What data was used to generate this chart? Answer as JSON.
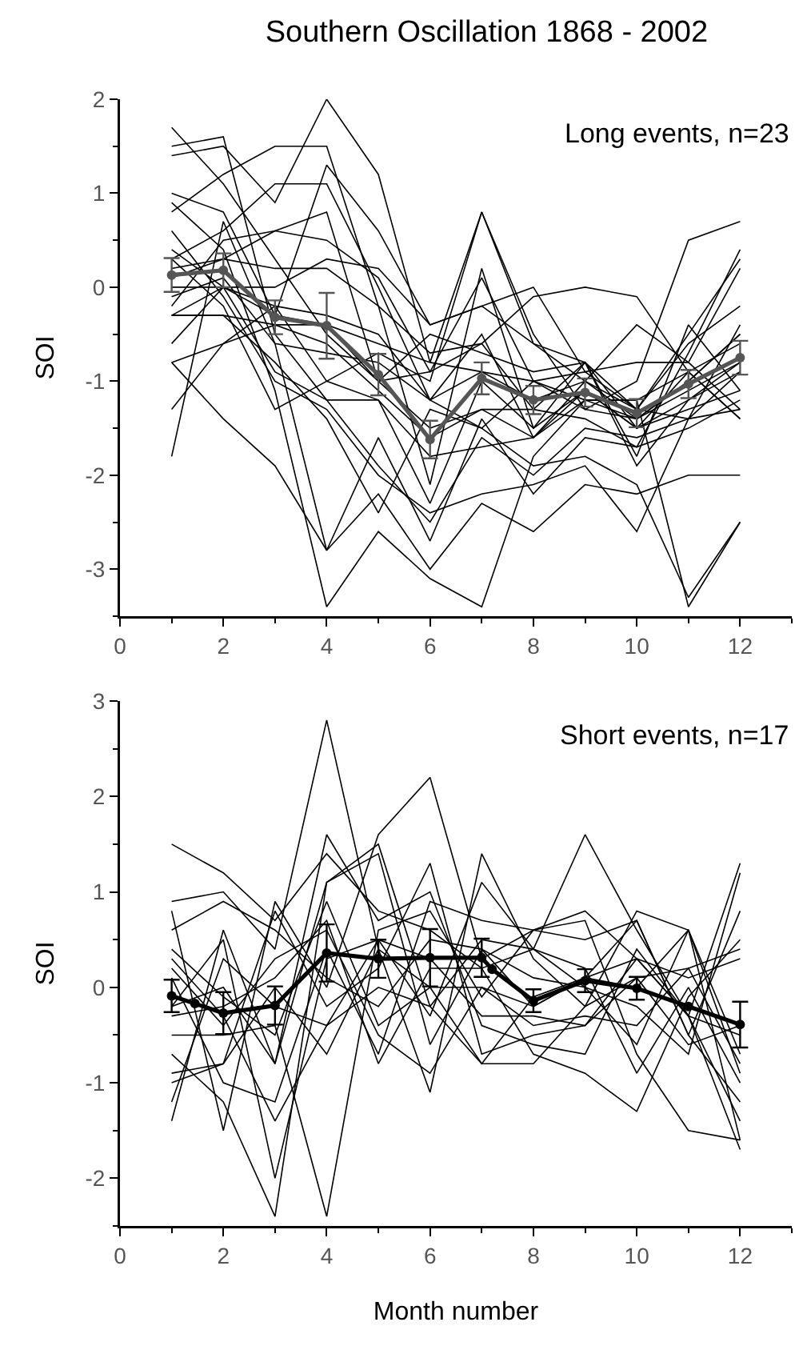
{
  "chart_data": [
    {
      "type": "line",
      "title": "Southern Oscillation 1868 - 2002",
      "ylabel": "SOI",
      "annotations": [
        "Long events, n=23"
      ],
      "x": [
        1,
        2,
        3,
        4,
        5,
        6,
        7,
        8,
        9,
        10,
        11,
        12
      ],
      "xlim": [
        0,
        13
      ],
      "xticks": [
        0,
        2,
        4,
        6,
        8,
        10,
        12
      ],
      "ylim": [
        -3.5,
        2
      ],
      "yticks": [
        -3,
        -2,
        -1,
        0,
        1,
        2
      ],
      "series": [
        {
          "color": "#000000",
          "values": [
            1.7,
            1.1,
            0.3,
            -0.5,
            -1.0,
            -1.5,
            -1.3,
            -1.6,
            -1.2,
            -1.4,
            -1.0,
            -0.5
          ]
        },
        {
          "color": "#000000",
          "values": [
            1.4,
            1.5,
            0.9,
            2.0,
            1.2,
            -0.8,
            0.8,
            -0.5,
            -1.3,
            -1.0,
            0.5,
            0.7
          ]
        },
        {
          "color": "#000000",
          "values": [
            1.5,
            1.6,
            -0.5,
            -1.2,
            -1.2,
            -2.3,
            -1.0,
            -1.5,
            -0.8,
            -1.9,
            -1.2,
            -0.8
          ]
        },
        {
          "color": "#000000",
          "values": [
            0.8,
            1.2,
            1.5,
            1.5,
            -0.2,
            -2.1,
            0.2,
            -1.5,
            -1.1,
            -1.5,
            -0.9,
            -0.6
          ]
        },
        {
          "color": "#000000",
          "values": [
            0.3,
            0.6,
            1.1,
            1.1,
            0.0,
            -1.2,
            -0.5,
            -1.6,
            -1.0,
            -1.3,
            -1.4,
            -0.9
          ]
        },
        {
          "color": "#000000",
          "values": [
            -0.2,
            0.5,
            0.6,
            0.5,
            0.1,
            -0.9,
            -0.6,
            -1.3,
            -0.8,
            -1.3,
            -0.6,
            -0.2
          ]
        },
        {
          "color": "#000000",
          "values": [
            0.2,
            0.3,
            0.2,
            0.2,
            -0.2,
            -0.7,
            -0.6,
            -0.1,
            0.0,
            -0.1,
            -0.9,
            -1.4
          ]
        },
        {
          "color": "#000000",
          "values": [
            0.0,
            0.0,
            -0.2,
            -0.3,
            -0.5,
            -1.2,
            -1.5,
            -1.9,
            -1.8,
            -2.1,
            -3.3,
            -2.5
          ]
        },
        {
          "color": "#000000",
          "values": [
            -0.3,
            -0.3,
            -0.4,
            -0.4,
            -0.6,
            -0.8,
            -0.9,
            -1.2,
            -1.0,
            -1.4,
            -1.0,
            -0.5
          ]
        },
        {
          "color": "#000000",
          "values": [
            -0.8,
            -0.6,
            -0.4,
            -0.6,
            -1.1,
            -1.6,
            -1.3,
            -1.3,
            -1.4,
            -1.7,
            -0.7,
            0.4
          ]
        },
        {
          "color": "#000000",
          "values": [
            -1.3,
            -0.6,
            -0.2,
            -1.0,
            -1.2,
            -1.8,
            -1.7,
            -1.6,
            -1.1,
            -1.5,
            -1.3,
            -1.1
          ]
        },
        {
          "color": "#000000",
          "values": [
            -1.8,
            0.7,
            -0.6,
            -2.8,
            -2.2,
            -3.0,
            -2.3,
            -2.6,
            -2.1,
            -2.2,
            -2.0,
            -2.0
          ]
        },
        {
          "color": "#000000",
          "values": [
            -0.8,
            -1.4,
            -1.9,
            -2.8,
            -1.6,
            -2.7,
            -1.4,
            -2.2,
            -1.6,
            -1.7,
            -1.5,
            -1.2
          ]
        },
        {
          "color": "#000000",
          "values": [
            0.4,
            0.0,
            -0.9,
            -1.2,
            -1.9,
            -2.5,
            -1.6,
            -2.0,
            -1.5,
            -1.6,
            -1.4,
            -1.3
          ]
        },
        {
          "color": "#000000",
          "values": [
            0.6,
            -0.1,
            -1.0,
            -1.3,
            -2.0,
            -2.4,
            -2.2,
            -2.1,
            -1.9,
            -2.6,
            -1.4,
            -0.4
          ]
        },
        {
          "color": "#000000",
          "values": [
            0.9,
            0.4,
            -1.1,
            -3.4,
            -2.6,
            -3.1,
            -3.4,
            -1.8,
            -1.2,
            -1.2,
            -3.4,
            -2.5
          ]
        },
        {
          "color": "#000000",
          "values": [
            -0.3,
            -0.3,
            -0.8,
            -1.4,
            -2.4,
            -1.3,
            -1.5,
            -1.0,
            -0.9,
            -1.3,
            -0.5,
            0.3
          ]
        },
        {
          "color": "#000000",
          "values": [
            0.3,
            -0.2,
            -1.3,
            -1.0,
            -0.7,
            -1.0,
            0.8,
            -0.6,
            -0.8,
            -1.8,
            -0.4,
            -1.1
          ]
        },
        {
          "color": "#000000",
          "values": [
            0.1,
            0.3,
            0.6,
            0.8,
            -1.0,
            -0.9,
            0.1,
            -1.0,
            -1.2,
            -1.2,
            -0.9,
            -1.4
          ]
        },
        {
          "color": "#000000",
          "values": [
            -0.6,
            0.0,
            0.0,
            0.3,
            0.2,
            -0.4,
            -0.2,
            0.0,
            -0.9,
            -0.8,
            -0.8,
            -1.3
          ]
        },
        {
          "color": "#000000",
          "values": [
            -0.3,
            0.0,
            -0.3,
            -0.4,
            -1.0,
            -0.5,
            -0.7,
            -0.9,
            -0.8,
            -1.5,
            -1.2,
            -0.9
          ]
        },
        {
          "color": "#000000",
          "values": [
            1.0,
            0.8,
            -0.3,
            1.3,
            0.6,
            -0.4,
            -0.2,
            -0.6,
            -1.0,
            -0.4,
            -0.8,
            0.2
          ]
        },
        {
          "color": "#000000",
          "values": [
            -0.1,
            0.1,
            -0.6,
            -0.7,
            -0.8,
            -1.2,
            -0.9,
            -1.0,
            -1.3,
            -1.4,
            -1.1,
            -0.8
          ]
        },
        {
          "color": "#555555",
          "marker": "circle",
          "values": [
            0.13,
            0.18,
            -0.32,
            -0.41,
            -0.93,
            -1.62,
            -0.97,
            -1.2,
            -1.12,
            -1.34,
            -1.03,
            -0.75
          ],
          "errors": [
            0.18,
            0.18,
            0.18,
            0.35,
            0.22,
            0.2,
            0.17,
            0.15,
            0.15,
            0.15,
            0.15,
            0.18
          ]
        }
      ]
    },
    {
      "type": "line",
      "ylabel": "SOI",
      "xlabel": "Month number",
      "annotations": [
        "Short events, n=17"
      ],
      "x": [
        1,
        2,
        3,
        4,
        5,
        6,
        7,
        8,
        9,
        10,
        11,
        12
      ],
      "xlim": [
        0,
        13
      ],
      "xticks": [
        0,
        2,
        4,
        6,
        8,
        10,
        12
      ],
      "ylim": [
        -2.5,
        3
      ],
      "yticks": [
        -2,
        -1,
        0,
        1,
        2,
        3
      ],
      "series": [
        {
          "color": "#000000",
          "values": [
            1.5,
            1.2,
            0.7,
            1.4,
            0.8,
            0.6,
            0.2,
            0.4,
            1.6,
            0.6,
            -0.3,
            1.3
          ]
        },
        {
          "color": "#000000",
          "values": [
            0.9,
            1.0,
            0.4,
            2.8,
            0.4,
            -1.1,
            1.4,
            0.3,
            -0.2,
            0.8,
            0.6,
            -0.9
          ]
        },
        {
          "color": "#000000",
          "values": [
            0.8,
            -1.5,
            0.9,
            0.0,
            1.6,
            2.2,
            0.3,
            0.6,
            0.5,
            0.7,
            -0.5,
            0.8
          ]
        },
        {
          "color": "#000000",
          "values": [
            -0.7,
            -1.2,
            -2.4,
            1.1,
            1.5,
            -0.2,
            0.5,
            0.4,
            0.0,
            -0.6,
            0.6,
            -1.6
          ]
        },
        {
          "color": "#000000",
          "values": [
            -1.4,
            0.6,
            -0.8,
            1.6,
            0.7,
            1.0,
            -0.4,
            -0.6,
            -0.7,
            0.4,
            -0.3,
            -1.7
          ]
        },
        {
          "color": "#000000",
          "values": [
            -0.9,
            -0.8,
            0.8,
            -0.2,
            0.2,
            1.3,
            -0.7,
            -0.5,
            -0.4,
            0.1,
            0.2,
            0.4
          ]
        },
        {
          "color": "#000000",
          "values": [
            -0.5,
            -0.5,
            -0.4,
            -2.4,
            0.6,
            0.8,
            -0.1,
            0.6,
            0.8,
            0.3,
            0.1,
            0.3
          ]
        },
        {
          "color": "#000000",
          "values": [
            0.1,
            -1.0,
            -1.2,
            0.4,
            -0.7,
            0.9,
            0.7,
            0.6,
            0.7,
            -0.7,
            -1.5,
            -1.6
          ]
        },
        {
          "color": "#000000",
          "values": [
            0.6,
            0.9,
            0.6,
            0.1,
            -0.2,
            0.5,
            0.4,
            -0.2,
            0.1,
            0.7,
            -0.5,
            -1.2
          ]
        },
        {
          "color": "#000000",
          "values": [
            -0.3,
            -0.2,
            0.1,
            0.7,
            -0.8,
            0.2,
            0.2,
            -0.7,
            -0.9,
            -1.3,
            -0.1,
            0.5
          ]
        },
        {
          "color": "#000000",
          "values": [
            -1.0,
            -0.8,
            0.0,
            -0.7,
            0.4,
            0.0,
            -0.8,
            -0.8,
            -0.2,
            0.1,
            -0.6,
            -0.4
          ]
        },
        {
          "color": "#000000",
          "values": [
            0.3,
            -0.3,
            -1.4,
            -0.4,
            0.0,
            -0.2,
            -0.8,
            -0.1,
            0.1,
            0.0,
            0.6,
            -0.7
          ]
        },
        {
          "color": "#000000",
          "values": [
            -0.2,
            0.0,
            -0.8,
            1.1,
            1.4,
            -0.6,
            0.4,
            0.1,
            0.0,
            -0.2,
            -0.7,
            1.2
          ]
        },
        {
          "color": "#000000",
          "values": [
            0.4,
            -0.1,
            -0.5,
            0.9,
            -0.4,
            0.0,
            0.0,
            -0.4,
            -0.3,
            -0.4,
            0.2,
            -0.8
          ]
        },
        {
          "color": "#000000",
          "values": [
            -1.2,
            0.3,
            -0.2,
            -0.4,
            0.5,
            -0.3,
            1.1,
            0.4,
            0.2,
            -0.9,
            0.0,
            -1.0
          ]
        },
        {
          "color": "#000000",
          "values": [
            -0.2,
            0.5,
            -2.0,
            0.3,
            0.5,
            0.3,
            -0.3,
            -0.3,
            -0.4,
            0.3,
            -0.3,
            -1.4
          ]
        },
        {
          "color": "#000000",
          "values": [
            0.2,
            -0.4,
            0.3,
            0.6,
            -0.5,
            -0.9,
            0.0,
            -0.2,
            0.1,
            0.3,
            -0.3,
            -0.5
          ]
        },
        {
          "color": "#000000",
          "marker": "circle",
          "x": [
            1,
            1.45,
            2,
            3,
            4,
            5,
            6,
            7,
            7.2,
            8,
            9,
            10,
            11,
            12
          ],
          "values": [
            -0.09,
            -0.17,
            -0.27,
            -0.19,
            0.36,
            0.3,
            0.31,
            0.31,
            0.19,
            -0.14,
            0.07,
            -0.01,
            -0.2,
            -0.39
          ],
          "errors": [
            0.17,
            null,
            0.22,
            0.2,
            0.3,
            0.2,
            0.3,
            0.2,
            null,
            0.12,
            0.12,
            0.12,
            null,
            0.24
          ]
        }
      ]
    }
  ]
}
